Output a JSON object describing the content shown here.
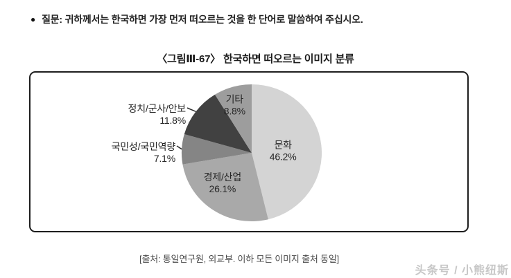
{
  "page": {
    "bullet": "●",
    "question": "질문: 귀하께서는 한국하면 가장 먼저 떠오르는 것을 한 단어로 말씀하여 주십시오.",
    "figure_title": "〈그림Ⅲ-67〉 한국하면 떠오르는 이미지 분류",
    "source_note": "[출처: 통일연구원, 외교부. 이하 모든 이미지 출처 동일]",
    "watermark": "头条号 / 小熊纽斯"
  },
  "chart_data": {
    "type": "pie",
    "title": "한국하면 떠오르는 이미지 분류",
    "unit": "%",
    "start_angle_deg": 0,
    "direction": "clockwise",
    "legend": "none",
    "slices": [
      {
        "label": "문화",
        "value": 46.2,
        "color": "#d4d4d4",
        "label_pos": "inside"
      },
      {
        "label": "경제/산업",
        "value": 26.1,
        "color": "#a9a9a9",
        "label_pos": "inside"
      },
      {
        "label": "국민성/국민역량",
        "value": 7.1,
        "color": "#858585",
        "label_pos": "outside-left"
      },
      {
        "label": "정치/군사/안보",
        "value": 11.8,
        "color": "#414141",
        "label_pos": "outside-left"
      },
      {
        "label": "기타",
        "value": 8.8,
        "color": "#9d9d9d",
        "label_pos": "inside"
      }
    ]
  }
}
